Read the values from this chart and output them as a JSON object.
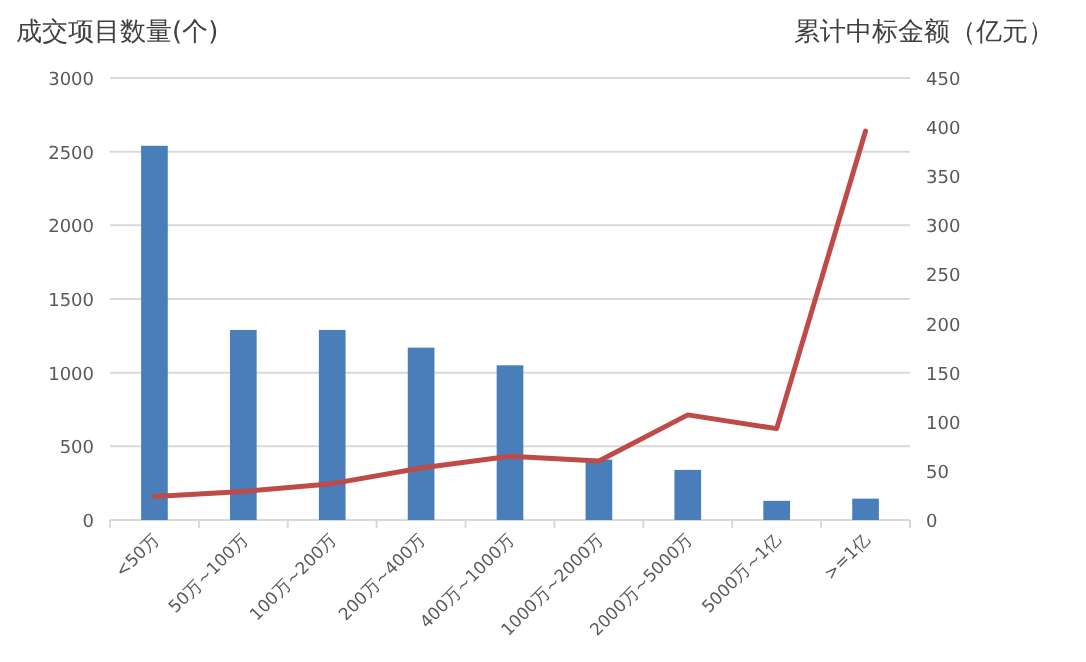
{
  "chart_data": {
    "type": "bar",
    "ylabel": "成交项目数量(个)",
    "y2label": "累计中标金额（亿元）",
    "categories": [
      "<50万",
      "50万~100万",
      "100万~200万",
      "200万~400万",
      "400万~1000万",
      "1000万~2000万",
      "2000万~5000万",
      "5000万~1亿",
      ">=1亿"
    ],
    "series": [
      {
        "color": "#4a7ebb",
        "values": [
          2540,
          1290,
          1290,
          1170,
          1050,
          410,
          340,
          130,
          145
        ]
      },
      {
        "type": "line",
        "axis": "y2",
        "color": "#be4b48",
        "values": [
          24,
          29,
          37,
          53,
          65,
          60,
          107,
          93,
          396
        ]
      }
    ],
    "ylim": [
      0,
      3000
    ],
    "yticks": [
      0,
      500,
      1000,
      1500,
      2000,
      2500,
      3000
    ],
    "y2lim": [
      0,
      450
    ],
    "y2ticks": [
      0,
      50,
      100,
      150,
      200,
      250,
      300,
      350,
      400,
      450
    ],
    "grid": "y"
  }
}
